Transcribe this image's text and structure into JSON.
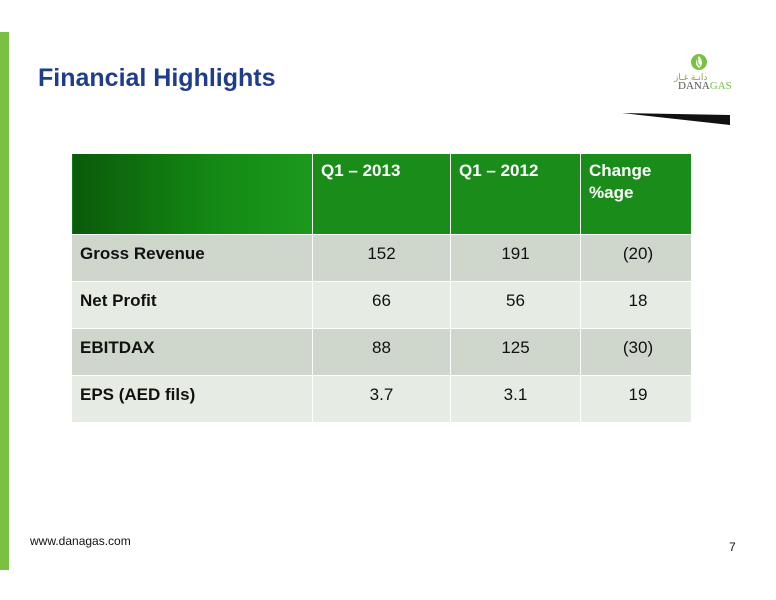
{
  "slide": {
    "title": "Financial Highlights",
    "footer_url": "www.danagas.com",
    "page_number": "7",
    "accent_color": "#7ac143",
    "title_color": "#1f3d8a"
  },
  "logo": {
    "arabic_text": "دانـة غـاز",
    "name_part1": "DANA",
    "name_part2": "GAS"
  },
  "table": {
    "columns": [
      "",
      "Q1 – 2013",
      "Q1 – 2012",
      "Change %age"
    ],
    "rows": [
      {
        "label": "Gross Revenue",
        "q1_2013": "152",
        "q1_2012": "191",
        "change": "(20)"
      },
      {
        "label": "Net Profit",
        "q1_2013": "66",
        "q1_2012": "56",
        "change": "18"
      },
      {
        "label": "EBITDAX",
        "q1_2013": "88",
        "q1_2012": "125",
        "change": "(30)"
      },
      {
        "label": "EPS (AED fils)",
        "q1_2013": "3.7",
        "q1_2012": "3.1",
        "change": "19"
      }
    ]
  }
}
